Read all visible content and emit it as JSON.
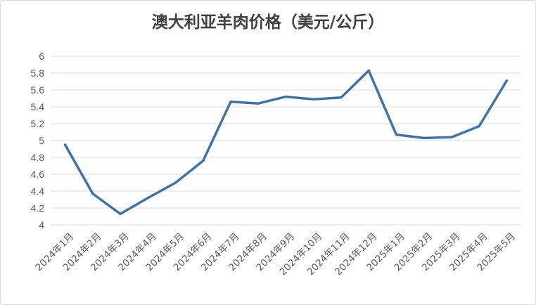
{
  "chart_data": {
    "type": "line",
    "title": "澳大利亚羊肉价格（美元/公斤）",
    "xlabel": "",
    "ylabel": "",
    "categories": [
      "2024年1月",
      "2024年2月",
      "2024年3月",
      "2024年4月",
      "2024年5月",
      "2024年6月",
      "2024年7月",
      "2024年8月",
      "2024年9月",
      "2024年10月",
      "2024年11月",
      "2024年12月",
      "2025年1月",
      "2025年2月",
      "2025年3月",
      "2025年4月",
      "2025年5月"
    ],
    "series": [
      {
        "values": [
          4.95,
          4.37,
          4.13,
          4.32,
          4.5,
          4.76,
          5.46,
          5.44,
          5.52,
          5.49,
          5.51,
          5.83,
          5.07,
          5.03,
          5.04,
          5.17,
          5.71
        ]
      }
    ],
    "ylim": [
      4,
      6
    ],
    "yticks": [
      "4",
      "4.2",
      "4.4",
      "4.6",
      "4.8",
      "5",
      "5.2",
      "5.4",
      "5.6",
      "5.8",
      "6"
    ],
    "grid": true,
    "legend": "none",
    "line_color": "#4472a0",
    "grid_color": "#d9d9d9"
  }
}
